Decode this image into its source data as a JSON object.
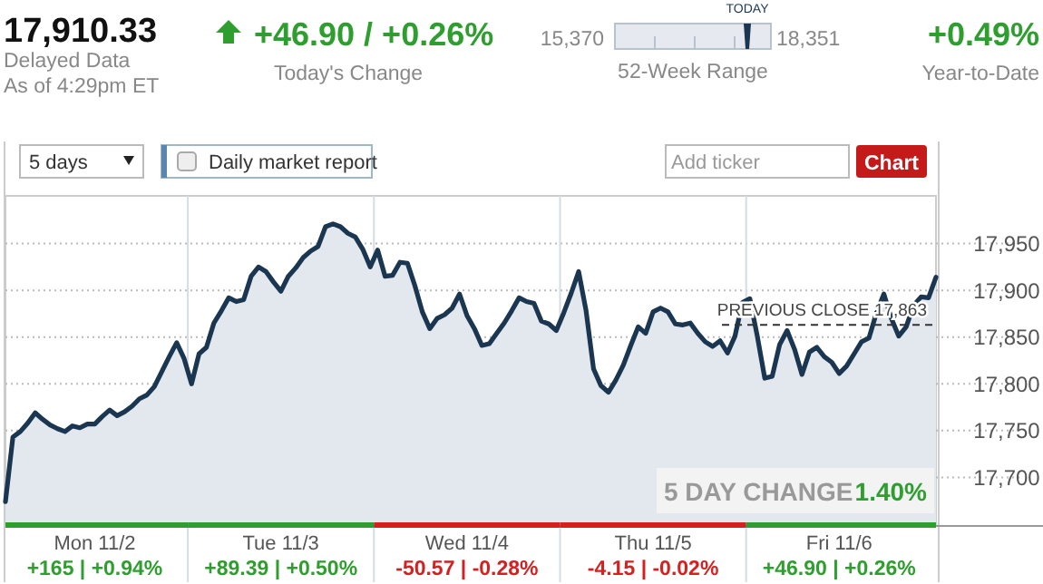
{
  "chart_data": {
    "type": "area",
    "title": "17,910.33",
    "annotations": [
      "Delayed Data",
      "As of 4:29pm ET",
      "+46.90 / +0.26%",
      "Today's Change",
      "15,370",
      "18,351",
      "TODAY",
      "52-Week Range",
      "+0.49%",
      "Year-to-Date",
      "5 days",
      "Daily market report",
      "Add ticker",
      "Chart",
      "5 DAY CHANGE",
      "1.40%",
      "+165 | +0.94%",
      "+89.39 | +0.50%",
      "-50.57 | -0.28%",
      "-4.15 | -0.02%",
      "+46.90 | +0.26%"
    ],
    "categories": [
      null,
      null,
      null,
      null,
      null,
      null,
      null,
      null,
      null,
      null,
      null,
      null,
      "Mon 11/2",
      null,
      null,
      null,
      null,
      null,
      null,
      null,
      null,
      null,
      null,
      null,
      null,
      null,
      null,
      null,
      null,
      null,
      null,
      null,
      null,
      null,
      null,
      null,
      null,
      "Tue 11/3",
      null,
      null,
      null,
      null,
      null,
      null,
      null,
      null,
      null,
      null,
      null,
      null,
      null,
      null,
      null,
      null,
      null,
      null,
      null,
      null,
      null,
      null,
      null,
      null,
      "Wed 11/4",
      null,
      null,
      null,
      null,
      null,
      null,
      null,
      null,
      null,
      null,
      null,
      null,
      null,
      null,
      null,
      null,
      null,
      null,
      null,
      null,
      null,
      null,
      null,
      null,
      "Thu 11/5",
      null,
      null,
      null,
      null,
      null,
      null,
      null,
      null,
      null,
      null,
      null,
      null,
      null,
      null,
      null,
      null,
      null,
      null,
      null,
      null,
      null,
      null,
      null,
      null,
      "Fri 11/6",
      null,
      null,
      null,
      null,
      null,
      null,
      null,
      null,
      null,
      null,
      null,
      null,
      null
    ],
    "ylim": [
      17648,
      18001
    ],
    "yticks": [
      {
        "value": 17700,
        "label": "17,700"
      },
      {
        "value": 17750,
        "label": "17,750"
      },
      {
        "value": 17800,
        "label": "17,800"
      },
      {
        "value": 17850,
        "label": "17,850"
      },
      {
        "value": 17900,
        "label": "17,900"
      },
      {
        "value": 17950,
        "label": "17,950"
      }
    ],
    "grid": "y",
    "ref_lines": [
      {
        "axis": "y",
        "value": 17863,
        "label": "PREVIOUS CLOSE 17,863",
        "line_style": "dashed",
        "color": "#333333"
      }
    ],
    "series": [
      {
        "color": "#1b3651",
        "values": [
          17674,
          17743,
          17749,
          17758,
          17769,
          17762,
          17756,
          17752,
          17749,
          17755,
          17753,
          17757,
          17757,
          17765,
          17772,
          17766,
          17770,
          17776,
          17784,
          17788,
          17797,
          17813,
          17829,
          17844,
          17827,
          17800,
          17832,
          17839,
          17865,
          17878,
          17892,
          17888,
          17890,
          17915,
          17925,
          17920,
          17909,
          17899,
          17915,
          17924,
          17935,
          17942,
          17947,
          17968,
          17971,
          17968,
          17961,
          17957,
          17944,
          17925,
          17943,
          17915,
          17916,
          17930,
          17929,
          17905,
          17877,
          17859,
          17870,
          17874,
          17881,
          17896,
          17873,
          17859,
          17841,
          17843,
          17854,
          17865,
          17878,
          17892,
          17888,
          17886,
          17867,
          17864,
          17857,
          17876,
          17897,
          17920,
          17878,
          17816,
          17798,
          17791,
          17804,
          17820,
          17841,
          17861,
          17854,
          17877,
          17881,
          17877,
          17864,
          17863,
          17865,
          17854,
          17845,
          17840,
          17846,
          17833,
          17851,
          17887,
          17891,
          17851,
          17806,
          17808,
          17842,
          17857,
          17837,
          17810,
          17834,
          17839,
          17829,
          17823,
          17811,
          17819,
          17832,
          17845,
          17849,
          17876,
          17896,
          17870,
          17851,
          17861,
          17884,
          17893,
          17892,
          17914
        ]
      }
    ]
  }
}
